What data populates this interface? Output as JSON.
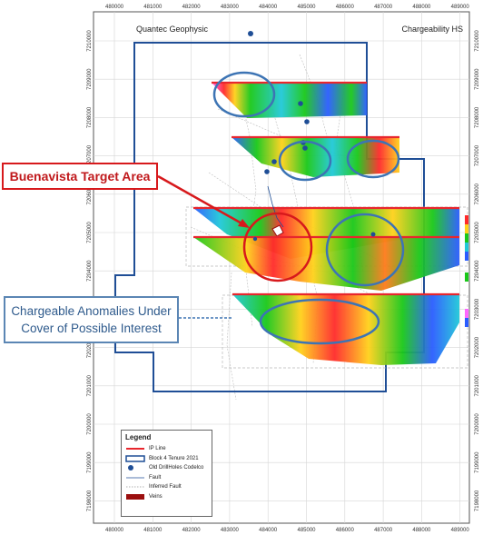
{
  "header": {
    "left_title": "Quantec Geophysic",
    "right_title": "Chargeability HS"
  },
  "axes": {
    "x_ticks": [
      "480000",
      "481000",
      "482000",
      "483000",
      "484000",
      "485000",
      "486000",
      "487000",
      "488000",
      "489000"
    ],
    "y_ticks": [
      "7210000",
      "7209000",
      "7208000",
      "7207000",
      "7206000",
      "7205000",
      "7204000",
      "7203000",
      "7202000",
      "7201000",
      "7200000",
      "7199000",
      "7198000"
    ]
  },
  "callouts": {
    "target": "Buenavista Target Area",
    "anomaly_line1": "Chargeable Anomalies Under",
    "anomaly_line2": "Cover of Possible Interest"
  },
  "legend": {
    "title": "Legend",
    "items": [
      {
        "label": "IP Line",
        "symbol": "red-line-icon"
      },
      {
        "label": "Block 4 Tenure 2021",
        "symbol": "blue-box-icon"
      },
      {
        "label": "Old DrillHoles Codelco",
        "symbol": "blue-dot-icon"
      },
      {
        "label": "Fault",
        "symbol": "blue-line-icon"
      },
      {
        "label": "Inferred Fault",
        "symbol": "dotted-line-icon"
      },
      {
        "label": "Veins",
        "symbol": "red-fill-icon"
      }
    ]
  },
  "colors": {
    "tenure": "#1f4e96",
    "ip_line": "#e8262d",
    "ellipse": "#3d74b4",
    "drillhole": "#1f4e96",
    "vein": "#9b0f0f"
  }
}
